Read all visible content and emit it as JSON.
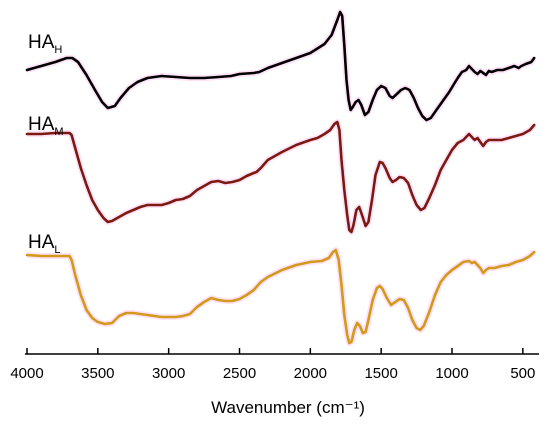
{
  "chart_data": {
    "type": "line",
    "title": "",
    "xlabel": "Wavenumber (cm⁻¹)",
    "ylabel": "",
    "xlim": [
      4000,
      400
    ],
    "x_reversed": true,
    "y_ticks_shown": false,
    "grid": false,
    "legend": "none",
    "x_ticks": [
      4000,
      3500,
      3000,
      2500,
      2000,
      1500,
      1000,
      500
    ],
    "series": [
      {
        "name": "HA",
        "subscript": "H",
        "color": "#000000",
        "points": [
          [
            4000,
            70
          ],
          [
            3900,
            66
          ],
          [
            3800,
            62
          ],
          [
            3720,
            58
          ],
          [
            3680,
            58
          ],
          [
            3640,
            62
          ],
          [
            3580,
            75
          ],
          [
            3520,
            90
          ],
          [
            3470,
            102
          ],
          [
            3430,
            108
          ],
          [
            3380,
            106
          ],
          [
            3340,
            98
          ],
          [
            3280,
            88
          ],
          [
            3220,
            82
          ],
          [
            3150,
            78
          ],
          [
            3050,
            76
          ],
          [
            2950,
            77
          ],
          [
            2850,
            78
          ],
          [
            2750,
            78
          ],
          [
            2650,
            77
          ],
          [
            2560,
            76
          ],
          [
            2500,
            74
          ],
          [
            2400,
            73
          ],
          [
            2360,
            72
          ],
          [
            2300,
            68
          ],
          [
            2200,
            63
          ],
          [
            2100,
            58
          ],
          [
            2000,
            53
          ],
          [
            1900,
            44
          ],
          [
            1850,
            35
          ],
          [
            1810,
            20
          ],
          [
            1790,
            12
          ],
          [
            1775,
            16
          ],
          [
            1760,
            45
          ],
          [
            1745,
            80
          ],
          [
            1730,
            100
          ],
          [
            1715,
            110
          ],
          [
            1700,
            107
          ],
          [
            1680,
            102
          ],
          [
            1660,
            100
          ],
          [
            1640,
            105
          ],
          [
            1615,
            115
          ],
          [
            1590,
            112
          ],
          [
            1560,
            100
          ],
          [
            1530,
            90
          ],
          [
            1500,
            86
          ],
          [
            1470,
            88
          ],
          [
            1440,
            96
          ],
          [
            1420,
            98
          ],
          [
            1390,
            94
          ],
          [
            1360,
            90
          ],
          [
            1330,
            88
          ],
          [
            1300,
            90
          ],
          [
            1270,
            98
          ],
          [
            1240,
            108
          ],
          [
            1210,
            116
          ],
          [
            1180,
            120
          ],
          [
            1150,
            118
          ],
          [
            1110,
            110
          ],
          [
            1060,
            100
          ],
          [
            1020,
            92
          ],
          [
            990,
            85
          ],
          [
            960,
            78
          ],
          [
            930,
            72
          ],
          [
            900,
            70
          ],
          [
            880,
            66
          ],
          [
            860,
            69
          ],
          [
            840,
            72
          ],
          [
            820,
            74
          ],
          [
            800,
            71
          ],
          [
            780,
            73
          ],
          [
            760,
            75
          ],
          [
            740,
            71
          ],
          [
            720,
            72
          ],
          [
            680,
            70
          ],
          [
            640,
            70
          ],
          [
            600,
            68
          ],
          [
            560,
            66
          ],
          [
            530,
            68
          ],
          [
            510,
            66
          ],
          [
            480,
            64
          ],
          [
            440,
            62
          ],
          [
            420,
            58
          ]
        ]
      },
      {
        "name": "HA",
        "subscript": "M",
        "color": "#7a1a10",
        "points": [
          [
            4000,
            134
          ],
          [
            3900,
            134
          ],
          [
            3800,
            133
          ],
          [
            3740,
            133
          ],
          [
            3700,
            133
          ],
          [
            3685,
            135
          ],
          [
            3660,
            148
          ],
          [
            3620,
            168
          ],
          [
            3580,
            185
          ],
          [
            3540,
            200
          ],
          [
            3500,
            210
          ],
          [
            3460,
            218
          ],
          [
            3430,
            222
          ],
          [
            3400,
            221
          ],
          [
            3350,
            217
          ],
          [
            3300,
            213
          ],
          [
            3250,
            210
          ],
          [
            3200,
            207
          ],
          [
            3150,
            205
          ],
          [
            3100,
            205
          ],
          [
            3050,
            205
          ],
          [
            3000,
            203
          ],
          [
            2950,
            200
          ],
          [
            2900,
            199
          ],
          [
            2850,
            196
          ],
          [
            2800,
            190
          ],
          [
            2750,
            186
          ],
          [
            2700,
            182
          ],
          [
            2650,
            181
          ],
          [
            2600,
            183
          ],
          [
            2550,
            182
          ],
          [
            2500,
            180
          ],
          [
            2450,
            176
          ],
          [
            2400,
            173
          ],
          [
            2380,
            172
          ],
          [
            2350,
            168
          ],
          [
            2300,
            160
          ],
          [
            2200,
            152
          ],
          [
            2100,
            145
          ],
          [
            2000,
            140
          ],
          [
            1950,
            138
          ],
          [
            1900,
            134
          ],
          [
            1860,
            130
          ],
          [
            1830,
            124
          ],
          [
            1810,
            122
          ],
          [
            1795,
            130
          ],
          [
            1780,
            160
          ],
          [
            1760,
            190
          ],
          [
            1740,
            215
          ],
          [
            1725,
            230
          ],
          [
            1710,
            232
          ],
          [
            1695,
            225
          ],
          [
            1675,
            210
          ],
          [
            1655,
            207
          ],
          [
            1635,
            215
          ],
          [
            1610,
            226
          ],
          [
            1590,
            222
          ],
          [
            1565,
            200
          ],
          [
            1540,
            175
          ],
          [
            1510,
            162
          ],
          [
            1490,
            163
          ],
          [
            1470,
            168
          ],
          [
            1440,
            178
          ],
          [
            1420,
            182
          ],
          [
            1395,
            180
          ],
          [
            1370,
            177
          ],
          [
            1340,
            178
          ],
          [
            1310,
            183
          ],
          [
            1280,
            195
          ],
          [
            1250,
            205
          ],
          [
            1220,
            210
          ],
          [
            1195,
            208
          ],
          [
            1160,
            198
          ],
          [
            1120,
            185
          ],
          [
            1080,
            170
          ],
          [
            1040,
            160
          ],
          [
            1000,
            150
          ],
          [
            960,
            143
          ],
          [
            920,
            140
          ],
          [
            880,
            134
          ],
          [
            860,
            137
          ],
          [
            840,
            140
          ],
          [
            820,
            138
          ],
          [
            800,
            142
          ],
          [
            780,
            146
          ],
          [
            760,
            142
          ],
          [
            740,
            140
          ],
          [
            700,
            140
          ],
          [
            650,
            140
          ],
          [
            600,
            138
          ],
          [
            550,
            136
          ],
          [
            500,
            134
          ],
          [
            450,
            130
          ],
          [
            420,
            125
          ]
        ]
      },
      {
        "name": "HA",
        "subscript": "L",
        "color": "#d39a1a",
        "points": [
          [
            4000,
            255
          ],
          [
            3900,
            256
          ],
          [
            3800,
            256
          ],
          [
            3730,
            256
          ],
          [
            3700,
            256
          ],
          [
            3685,
            260
          ],
          [
            3660,
            275
          ],
          [
            3620,
            295
          ],
          [
            3580,
            310
          ],
          [
            3540,
            318
          ],
          [
            3500,
            322
          ],
          [
            3450,
            324
          ],
          [
            3400,
            323
          ],
          [
            3350,
            316
          ],
          [
            3300,
            313
          ],
          [
            3250,
            313
          ],
          [
            3200,
            314
          ],
          [
            3150,
            315
          ],
          [
            3100,
            316
          ],
          [
            3050,
            317
          ],
          [
            3000,
            317
          ],
          [
            2950,
            317
          ],
          [
            2900,
            316
          ],
          [
            2850,
            314
          ],
          [
            2800,
            307
          ],
          [
            2750,
            302
          ],
          [
            2700,
            298
          ],
          [
            2650,
            300
          ],
          [
            2600,
            301
          ],
          [
            2550,
            301
          ],
          [
            2500,
            299
          ],
          [
            2450,
            295
          ],
          [
            2400,
            290
          ],
          [
            2350,
            282
          ],
          [
            2300,
            277
          ],
          [
            2200,
            270
          ],
          [
            2100,
            265
          ],
          [
            2000,
            262
          ],
          [
            1920,
            261
          ],
          [
            1870,
            258
          ],
          [
            1840,
            252
          ],
          [
            1820,
            250
          ],
          [
            1800,
            260
          ],
          [
            1780,
            285
          ],
          [
            1760,
            315
          ],
          [
            1740,
            335
          ],
          [
            1725,
            343
          ],
          [
            1710,
            342
          ],
          [
            1690,
            330
          ],
          [
            1670,
            323
          ],
          [
            1650,
            326
          ],
          [
            1630,
            333
          ],
          [
            1610,
            332
          ],
          [
            1590,
            320
          ],
          [
            1560,
            300
          ],
          [
            1530,
            288
          ],
          [
            1510,
            286
          ],
          [
            1490,
            289
          ],
          [
            1460,
            298
          ],
          [
            1430,
            305
          ],
          [
            1400,
            302
          ],
          [
            1370,
            299
          ],
          [
            1340,
            300
          ],
          [
            1310,
            308
          ],
          [
            1280,
            320
          ],
          [
            1250,
            328
          ],
          [
            1225,
            330
          ],
          [
            1200,
            326
          ],
          [
            1160,
            312
          ],
          [
            1120,
            295
          ],
          [
            1080,
            282
          ],
          [
            1040,
            275
          ],
          [
            1000,
            270
          ],
          [
            960,
            266
          ],
          [
            920,
            262
          ],
          [
            880,
            261
          ],
          [
            860,
            263
          ],
          [
            840,
            262
          ],
          [
            820,
            265
          ],
          [
            800,
            268
          ],
          [
            780,
            273
          ],
          [
            760,
            270
          ],
          [
            740,
            268
          ],
          [
            700,
            268
          ],
          [
            650,
            266
          ],
          [
            600,
            265
          ],
          [
            550,
            262
          ],
          [
            500,
            260
          ],
          [
            450,
            256
          ],
          [
            420,
            252
          ]
        ]
      }
    ]
  }
}
